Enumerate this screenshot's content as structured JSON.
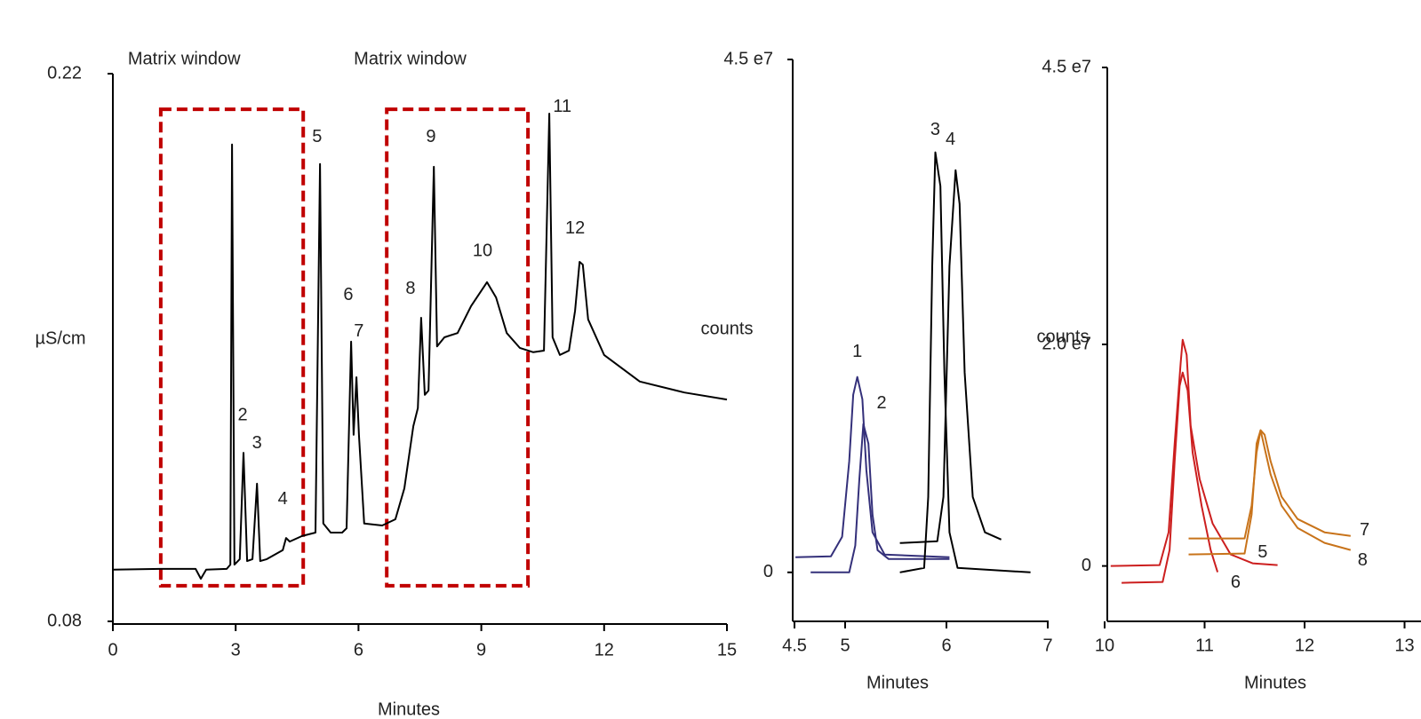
{
  "chart_data": [
    {
      "type": "line",
      "ylabel": "µS/cm",
      "xlabel": "Minutes",
      "xlim": [
        0,
        15
      ],
      "xticks": [
        0,
        3,
        6,
        9,
        12,
        15
      ],
      "ylim": [
        0.08,
        0.22
      ],
      "yticks": [
        0.08,
        0.22
      ],
      "series": [
        {
          "color": "#000000",
          "x": [
            0,
            1.15,
            2.02,
            2.15,
            2.28,
            2.78,
            2.87,
            2.91,
            2.97,
            3.1,
            3.19,
            3.28,
            3.41,
            3.52,
            3.6,
            3.76,
            4.15,
            4.23,
            4.32,
            4.62,
            4.95,
            5.06,
            5.14,
            5.32,
            5.6,
            5.71,
            5.82,
            5.88,
            5.95,
            6.01,
            6.14,
            6.58,
            6.9,
            7.12,
            7.34,
            7.45,
            7.53,
            7.62,
            7.71,
            7.84,
            7.92,
            8.1,
            8.42,
            8.75,
            9.14,
            9.36,
            9.62,
            9.94,
            10.27,
            10.53,
            10.66,
            10.74,
            10.92,
            11.14,
            11.29,
            11.4,
            11.48,
            11.61,
            12.0,
            12.87,
            13.96,
            15.0
          ],
          "values": [
            0.0932,
            0.0934,
            0.0934,
            0.0909,
            0.0932,
            0.0934,
            0.0945,
            0.2019,
            0.0945,
            0.0959,
            0.1231,
            0.0954,
            0.0959,
            0.1152,
            0.0954,
            0.0959,
            0.0982,
            0.1013,
            0.1004,
            0.1018,
            0.1027,
            0.1969,
            0.105,
            0.1027,
            0.1027,
            0.1038,
            0.1515,
            0.1277,
            0.1424,
            0.1277,
            0.105,
            0.1045,
            0.1061,
            0.114,
            0.1299,
            0.1345,
            0.1576,
            0.1379,
            0.139,
            0.1962,
            0.1503,
            0.1526,
            0.1537,
            0.1606,
            0.1667,
            0.1628,
            0.1537,
            0.1499,
            0.1488,
            0.1492,
            0.2098,
            0.1526,
            0.1481,
            0.1492,
            0.1594,
            0.1719,
            0.1712,
            0.1572,
            0.1481,
            0.1413,
            0.1385,
            0.1367
          ]
        }
      ],
      "windows": [
        {
          "label": "Matrix window",
          "x": [
            1.17,
            4.65
          ],
          "y": [
            0.0891,
            0.2109
          ],
          "color": "#c00000"
        },
        {
          "label": "Matrix window",
          "x": [
            6.69,
            10.14
          ],
          "y": [
            0.0891,
            0.2109
          ],
          "color": "#c00000"
        }
      ],
      "annotations": [
        {
          "text": "2",
          "x": 3.17,
          "y": 0.1326
        },
        {
          "text": "3",
          "x": 3.52,
          "y": 0.1254
        },
        {
          "text": "4",
          "x": 4.15,
          "y": 0.1111
        },
        {
          "text": "5",
          "x": 4.99,
          "y": 0.2037
        },
        {
          "text": "6",
          "x": 5.75,
          "y": 0.1633
        },
        {
          "text": "7",
          "x": 6.01,
          "y": 0.154
        },
        {
          "text": "8",
          "x": 7.27,
          "y": 0.1649
        },
        {
          "text": "9",
          "x": 7.77,
          "y": 0.2037
        },
        {
          "text": "10",
          "x": 9.03,
          "y": 0.1746
        },
        {
          "text": "11",
          "x": 10.98,
          "y": 0.2114
        },
        {
          "text": "12",
          "x": 11.29,
          "y": 0.1803
        }
      ]
    },
    {
      "type": "line",
      "ylabel": "counts",
      "xlabel": "Minutes",
      "xlim": [
        4.5,
        7
      ],
      "xticks": [
        4.5,
        5,
        6,
        7
      ],
      "ylim": [
        -4300000,
        45000000
      ],
      "yticks": [
        0,
        {
          "value": 45000000,
          "label": "4.5 e7"
        }
      ],
      "series": [
        {
          "color": "#34307a",
          "x": [
            4.51,
            4.86,
            4.97,
            5.04,
            5.08,
            5.12,
            5.17,
            5.21,
            5.27,
            5.39,
            6.03
          ],
          "values": [
            1320000,
            1400000,
            3120000,
            9740000,
            15580000,
            17140000,
            15190000,
            8960000,
            3510000,
            1560000,
            1320000
          ]
        },
        {
          "color": "#34307a",
          "x": [
            4.66,
            5.04,
            5.1,
            5.14,
            5.18,
            5.23,
            5.27,
            5.32,
            5.43,
            6.03
          ],
          "values": [
            0,
            0,
            2340000,
            8180000,
            13010000,
            11300000,
            5060000,
            1950000,
            1170000,
            1170000
          ]
        },
        {
          "color": "#000000",
          "x": [
            5.54,
            5.78,
            5.82,
            5.86,
            5.89,
            5.94,
            5.98,
            6.03,
            6.11,
            6.83
          ],
          "values": [
            0,
            390000,
            6620000,
            26880000,
            36850000,
            33890000,
            17530000,
            3510000,
            390000,
            0
          ]
        },
        {
          "color": "#000000",
          "x": [
            5.54,
            5.91,
            5.97,
            6.03,
            6.09,
            6.13,
            6.18,
            6.26,
            6.38,
            6.54
          ],
          "values": [
            2570000,
            2730000,
            6620000,
            26880000,
            35290000,
            32330000,
            17530000,
            6620000,
            3510000,
            2880000
          ]
        }
      ],
      "annotations": [
        {
          "text": "1",
          "x": 5.12,
          "y": 19320000
        },
        {
          "text": "2",
          "x": 5.36,
          "y": 14800000
        },
        {
          "text": "3",
          "x": 5.89,
          "y": 38790000
        },
        {
          "text": "4",
          "x": 6.04,
          "y": 37940000
        }
      ]
    },
    {
      "type": "line",
      "ylabel": "counts",
      "xlabel": "Minutes",
      "xlim": [
        10,
        13
      ],
      "xticks": [
        10,
        11,
        12,
        13
      ],
      "ylim": [
        -5000000,
        45000000
      ],
      "yticks": [
        0,
        {
          "value": 20000000,
          "label": "2.0 e7"
        },
        {
          "value": 45000000,
          "label": "4.5 e7"
        }
      ],
      "series": [
        {
          "color": "#cc1f1f",
          "x": [
            10.06,
            10.55,
            10.64,
            10.7,
            10.76,
            10.78,
            10.82,
            10.86,
            10.95,
            11.08,
            11.26,
            11.48,
            11.73
          ],
          "values": [
            0,
            80000,
            3040000,
            11050000,
            18260000,
            20420000,
            19060000,
            12650000,
            7850000,
            3840000,
            1040000,
            240000,
            80000
          ]
        },
        {
          "color": "#cc1f1f",
          "x": [
            10.17,
            10.58,
            10.65,
            10.7,
            10.75,
            10.78,
            10.83,
            10.88,
            10.97,
            11.06,
            11.13
          ],
          "values": [
            -1520000,
            -1440000,
            1440000,
            9450000,
            16250000,
            17460000,
            15850000,
            10250000,
            5440000,
            1440000,
            -560000
          ]
        },
        {
          "color": "#c8731a",
          "x": [
            10.84,
            11.4,
            11.47,
            11.52,
            11.56,
            11.6,
            11.66,
            11.77,
            11.93,
            12.2,
            12.46
          ],
          "values": [
            2480000,
            2480000,
            5440000,
            10250000,
            12250000,
            11850000,
            9450000,
            6250000,
            4240000,
            3040000,
            2720000
          ]
        },
        {
          "color": "#c8731a",
          "x": [
            10.84,
            11.4,
            11.47,
            11.52,
            11.56,
            11.6,
            11.66,
            11.77,
            11.93,
            12.2,
            12.46
          ],
          "values": [
            1040000,
            1120000,
            4640000,
            11050000,
            12250000,
            10650000,
            8250000,
            5440000,
            3440000,
            2080000,
            1440000
          ]
        }
      ],
      "annotations": [
        {
          "text": "5",
          "x": 11.58,
          "y": 1200000
        },
        {
          "text": "6",
          "x": 11.31,
          "y": -1520000
        },
        {
          "text": "7",
          "x": 12.6,
          "y": 3200000
        },
        {
          "text": "8",
          "x": 12.58,
          "y": 480000
        }
      ]
    }
  ]
}
